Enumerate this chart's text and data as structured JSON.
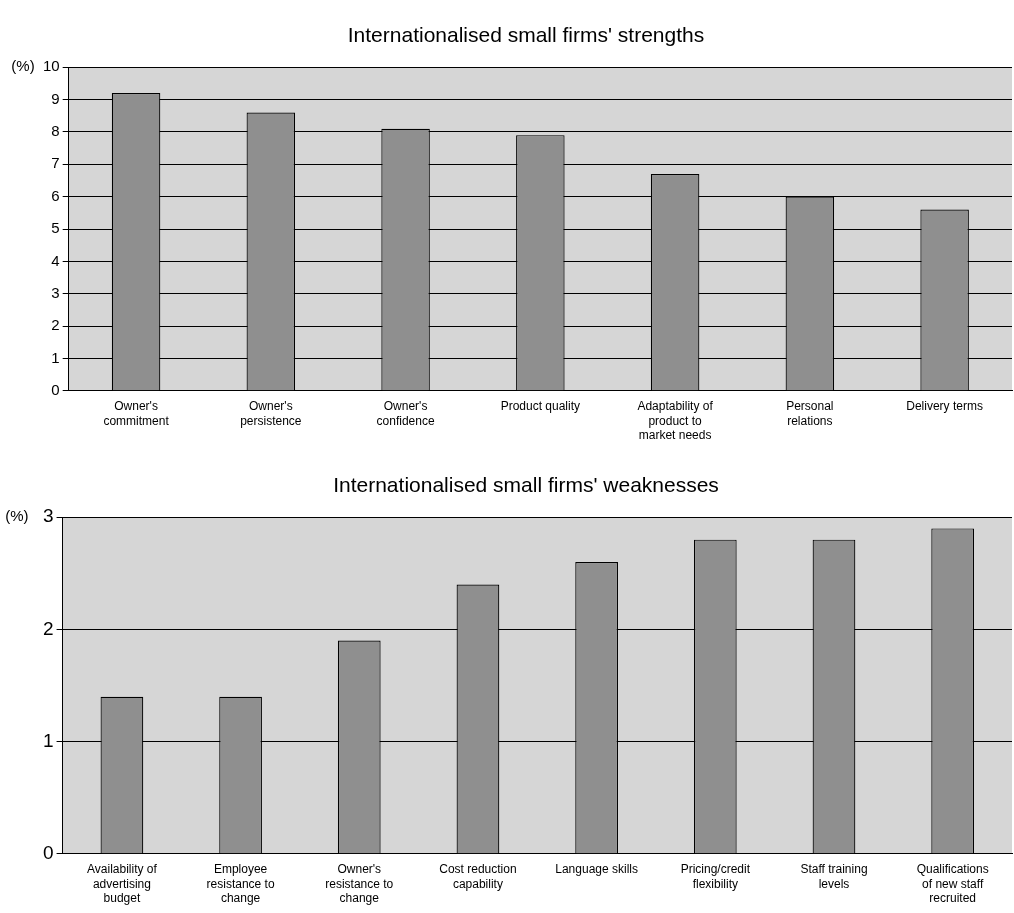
{
  "chart_data": [
    {
      "type": "bar",
      "title": "Internationalised small firms' strengths",
      "ylabel": "(%)",
      "categories": [
        "Owner's commitment",
        "Owner's persistence",
        "Owner's confidence",
        "Product quality",
        "Adaptability of product to market needs",
        "Personal relations",
        "Delivery terms"
      ],
      "values": [
        9.2,
        8.6,
        8.1,
        7.9,
        6.7,
        6.0,
        5.6
      ],
      "color": "#8f8f8f",
      "ylim": [
        0,
        10
      ],
      "yticks": [
        0,
        1,
        2,
        3,
        4,
        5,
        6,
        7,
        8,
        9,
        10
      ],
      "grid": "y",
      "legend": false
    },
    {
      "type": "bar",
      "title": "Internationalised small firms' weaknesses",
      "ylabel": "(%)",
      "categories": [
        "Availability of advertising budget",
        "Employee resistance to change",
        "Owner's resistance to change",
        "Cost reduction capability",
        "Language skills",
        "Pricing/credit flexibility",
        "Staff training levels",
        "Qualifications of new staff recruited"
      ],
      "values": [
        1.4,
        1.4,
        1.9,
        2.4,
        2.6,
        2.8,
        2.8,
        2.9
      ],
      "color": "#8f8f8f",
      "ylim": [
        0,
        3
      ],
      "yticks": [
        0,
        1,
        2,
        3
      ],
      "grid": "y",
      "legend": false
    }
  ]
}
